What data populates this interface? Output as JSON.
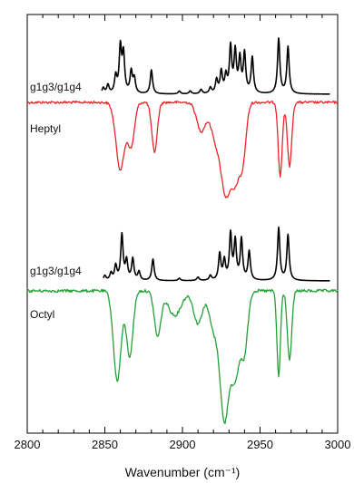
{
  "chart_data": {
    "type": "line",
    "xlabel": "Wavenumber (cm⁻¹)",
    "xlim": [
      2800,
      3000
    ],
    "x_ticks": [
      2800,
      2850,
      2900,
      2950,
      3000
    ],
    "grid": false,
    "series": [
      {
        "name": "g1g3/g1g4",
        "group": "Heptyl",
        "kind": "calculated",
        "color": "#000000",
        "peaks": [
          {
            "x": 2849,
            "h": 0.12
          },
          {
            "x": 2852,
            "h": 0.18
          },
          {
            "x": 2857,
            "h": 0.35
          },
          {
            "x": 2860,
            "h": 0.95
          },
          {
            "x": 2862,
            "h": 0.8
          },
          {
            "x": 2867,
            "h": 0.45
          },
          {
            "x": 2869,
            "h": 0.3
          },
          {
            "x": 2880,
            "h": 0.5
          },
          {
            "x": 2898,
            "h": 0.06
          },
          {
            "x": 2905,
            "h": 0.06
          },
          {
            "x": 2912,
            "h": 0.09
          },
          {
            "x": 2918,
            "h": 0.12
          },
          {
            "x": 2922,
            "h": 0.28
          },
          {
            "x": 2925,
            "h": 0.45
          },
          {
            "x": 2928,
            "h": 0.35
          },
          {
            "x": 2931,
            "h": 0.95
          },
          {
            "x": 2934,
            "h": 0.85
          },
          {
            "x": 2937,
            "h": 0.7
          },
          {
            "x": 2940,
            "h": 0.82
          },
          {
            "x": 2945,
            "h": 0.75
          },
          {
            "x": 2962,
            "h": 1.15
          },
          {
            "x": 2968,
            "h": 0.98
          }
        ]
      },
      {
        "name": "Heptyl",
        "kind": "experimental",
        "color": "#e8262a",
        "dips": [
          {
            "x": 2860,
            "d": 0.95,
            "w": 4
          },
          {
            "x": 2867,
            "d": 0.6,
            "w": 3
          },
          {
            "x": 2882,
            "d": 0.7,
            "w": 2.5
          },
          {
            "x": 2912,
            "d": 0.4,
            "w": 4
          },
          {
            "x": 2922,
            "d": 0.55,
            "w": 5
          },
          {
            "x": 2928,
            "d": 1.1,
            "w": 4
          },
          {
            "x": 2934,
            "d": 1.05,
            "w": 4
          },
          {
            "x": 2939,
            "d": 0.7,
            "w": 3
          },
          {
            "x": 2963,
            "d": 1.05,
            "w": 1.8
          },
          {
            "x": 2969,
            "d": 0.9,
            "w": 2
          }
        ]
      },
      {
        "name": "g1g3/g1g4",
        "group": "Octyl",
        "kind": "calculated",
        "color": "#000000",
        "peaks": [
          {
            "x": 2850,
            "h": 0.1
          },
          {
            "x": 2854,
            "h": 0.15
          },
          {
            "x": 2857,
            "h": 0.3
          },
          {
            "x": 2861,
            "h": 0.95
          },
          {
            "x": 2864,
            "h": 0.4
          },
          {
            "x": 2868,
            "h": 0.45
          },
          {
            "x": 2872,
            "h": 0.18
          },
          {
            "x": 2881,
            "h": 0.45
          },
          {
            "x": 2898,
            "h": 0.05
          },
          {
            "x": 2910,
            "h": 0.07
          },
          {
            "x": 2918,
            "h": 0.1
          },
          {
            "x": 2924,
            "h": 0.55
          },
          {
            "x": 2927,
            "h": 0.4
          },
          {
            "x": 2931,
            "h": 0.95
          },
          {
            "x": 2934,
            "h": 0.8
          },
          {
            "x": 2938,
            "h": 0.85
          },
          {
            "x": 2943,
            "h": 0.6
          },
          {
            "x": 2962,
            "h": 1.1
          },
          {
            "x": 2968,
            "h": 0.95
          }
        ]
      },
      {
        "name": "Octyl",
        "kind": "experimental",
        "color": "#23a135",
        "dips": [
          {
            "x": 2858,
            "d": 1.1,
            "w": 3.5
          },
          {
            "x": 2866,
            "d": 0.8,
            "w": 3
          },
          {
            "x": 2884,
            "d": 0.55,
            "w": 3
          },
          {
            "x": 2895,
            "d": 0.3,
            "w": 6
          },
          {
            "x": 2910,
            "d": 0.4,
            "w": 4
          },
          {
            "x": 2920,
            "d": 0.45,
            "w": 4
          },
          {
            "x": 2927,
            "d": 1.55,
            "w": 4
          },
          {
            "x": 2934,
            "d": 1.05,
            "w": 4
          },
          {
            "x": 2940,
            "d": 0.7,
            "w": 3
          },
          {
            "x": 2962,
            "d": 1.05,
            "w": 1.6
          },
          {
            "x": 2969,
            "d": 0.85,
            "w": 2
          }
        ]
      }
    ]
  }
}
